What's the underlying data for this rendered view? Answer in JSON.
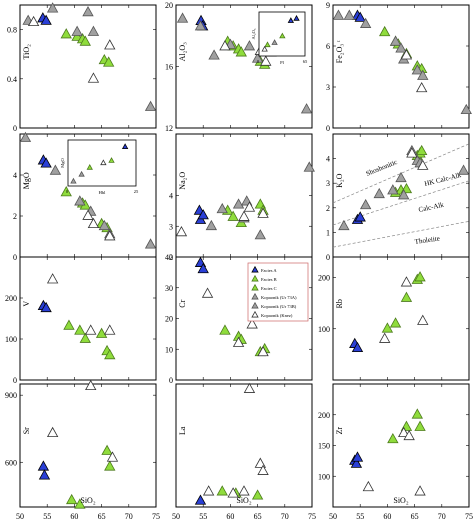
{
  "chart_data": {
    "type": "scatter",
    "x_ticks": [
      50,
      55,
      60,
      65,
      70,
      75
    ],
    "xlim": [
      50,
      75
    ],
    "legend": [
      {
        "name": "Facies A",
        "color": "#2a3fd6",
        "edge": "#000000",
        "shape": "triangle"
      },
      {
        "name": "Facies B",
        "color": "#8fdc3c",
        "edge": "#4c7a1c",
        "shape": "triangle"
      },
      {
        "name": "Facies C",
        "color": "#8fdc3c",
        "edge": "#4c7a1c",
        "shape": "triangle"
      },
      {
        "name": "Kopaonik (Ur 73A)",
        "color": "#a0a0a0",
        "edge": "#555555",
        "shape": "triangle"
      },
      {
        "name": "Kopaonik (Ur 73B)",
        "color": "#a0a0a0",
        "edge": "#555555",
        "shape": "triangle"
      },
      {
        "name": "Kopaonik (Knez)",
        "color": "#ffffff",
        "edge": "#333333",
        "shape": "triangle"
      }
    ],
    "panels": [
      {
        "ylabel": "TiO2",
        "ylim": [
          0,
          1.0
        ],
        "yticks": [
          0,
          0.4,
          0.8
        ],
        "xlabel": "",
        "series": [
          {
            "name": "Facies A",
            "x": [
              54.2,
              54.8
            ],
            "y": [
              0.89,
              0.87
            ]
          },
          {
            "name": "Facies B",
            "x": [
              58.5,
              60.5,
              61.5,
              62.0,
              65.5,
              66.3
            ],
            "y": [
              0.76,
              0.74,
              0.72,
              0.7,
              0.55,
              0.53
            ]
          },
          {
            "name": "Kopaonik (Ur 73A)",
            "x": [
              51.5,
              56.0,
              60.5,
              62.5,
              63.5,
              74.0
            ],
            "y": [
              0.87,
              0.97,
              0.78,
              0.94,
              0.78,
              0.17
            ]
          },
          {
            "name": "Kopaonik (Knez)",
            "x": [
              52.5,
              63.5,
              66.5
            ],
            "y": [
              0.86,
              0.4,
              0.67
            ]
          }
        ]
      },
      {
        "ylabel": "Al2O3",
        "ylim": [
          12,
          20
        ],
        "yticks": [
          12,
          16,
          20
        ],
        "xlabel": "",
        "series": [
          {
            "name": "Facies A",
            "x": [
              54.6,
              54.9
            ],
            "y": [
              18.95,
              18.6
            ]
          },
          {
            "name": "Facies B",
            "x": [
              59.5,
              60.5,
              61.5,
              62.0,
              65.5,
              66.3
            ],
            "y": [
              17.6,
              17.3,
              17.1,
              16.9,
              16.3,
              16.1
            ]
          },
          {
            "name": "Kopaonik (Ur 73A)",
            "x": [
              51.2,
              54.5,
              57.0,
              60.0,
              63.5,
              65.0,
              66.0,
              74.0
            ],
            "y": [
              19.1,
              18.6,
              16.7,
              17.4,
              17.3,
              16.5,
              17.2,
              13.2
            ]
          },
          {
            "name": "Kopaonik (Knez)",
            "x": [
              59.0,
              65.5,
              66.5,
              67.5
            ],
            "y": [
              17.3,
              17.0,
              16.3,
              16.9
            ]
          }
        ],
        "inset": {
          "xlabel": "Pl",
          "ylabel": "Al2O3",
          "x_ticks": [
            0,
            65
          ],
          "points": [
            {
              "x": 45,
              "y": 0.8,
              "kind": "Facies A"
            },
            {
              "x": 53,
              "y": 0.85,
              "kind": "Facies A"
            },
            {
              "x": 33,
              "y": 0.45,
              "kind": "Facies B"
            },
            {
              "x": 12,
              "y": 0.25,
              "kind": "Facies B"
            },
            {
              "x": 22,
              "y": 0.3,
              "kind": "Kopaonik (Ur 73A)"
            },
            {
              "x": 8,
              "y": 0.15,
              "kind": "Kopaonik (Knez)"
            }
          ]
        }
      },
      {
        "ylabel": "Fe2O3 t",
        "ylim": [
          0,
          9
        ],
        "yticks": [
          0,
          3,
          6,
          9
        ],
        "xlabel": "",
        "series": [
          {
            "name": "Facies A",
            "x": [
              54.5,
              55.0
            ],
            "y": [
              8.2,
              8.05
            ]
          },
          {
            "name": "Facies B",
            "x": [
              59.5,
              61.5,
              62.0,
              63.5,
              65.5,
              66.3
            ],
            "y": [
              7.0,
              6.3,
              6.1,
              5.4,
              4.5,
              4.3
            ]
          },
          {
            "name": "Kopaonik (Ur 73A)",
            "x": [
              51.0,
              53.0,
              56.0,
              61.5,
              62.5,
              63.0,
              65.5,
              66.5,
              74.5
            ],
            "y": [
              8.2,
              8.2,
              7.6,
              6.3,
              5.8,
              5.0,
              4.2,
              3.8,
              1.3
            ]
          },
          {
            "name": "Kopaonik (Knez)",
            "x": [
              63.5,
              66.3
            ],
            "y": [
              5.3,
              2.9
            ]
          }
        ]
      },
      {
        "ylabel": "MgO",
        "ylim": [
          0,
          6
        ],
        "yticks": [
          0,
          2,
          4
        ],
        "xlabel": "",
        "series": [
          {
            "name": "Facies A",
            "x": [
              54.3,
              54.8
            ],
            "y": [
              4.7,
              4.55
            ]
          },
          {
            "name": "Facies B",
            "x": [
              58.5,
              61.5,
              62.0,
              65.0,
              66.0
            ],
            "y": [
              3.15,
              2.6,
              2.5,
              1.6,
              1.4
            ]
          },
          {
            "name": "Kopaonik (Ur 73A)",
            "x": [
              51.0,
              56.5,
              61.0,
              63.0,
              65.5,
              66.5,
              74.0
            ],
            "y": [
              5.8,
              4.2,
              2.7,
              2.2,
              1.5,
              1.1,
              0.6
            ]
          },
          {
            "name": "Kopaonik (Knez)",
            "x": [
              62.5,
              63.5,
              66.5
            ],
            "y": [
              2.0,
              1.6,
              1.0
            ]
          }
        ],
        "inset": {
          "xlabel": "Hbl",
          "ylabel": "MgO",
          "x_ticks": [
            0,
            25
          ],
          "points": [
            {
              "x": 21,
              "y": 0.85,
              "kind": "Facies A"
            },
            {
              "x": 16,
              "y": 0.55,
              "kind": "Facies B"
            },
            {
              "x": 8,
              "y": 0.4,
              "kind": "Facies B"
            },
            {
              "x": 5,
              "y": 0.25,
              "kind": "Kopaonik (Ur 73A)"
            },
            {
              "x": 13,
              "y": 0.5,
              "kind": "Kopaonik (Knez)"
            },
            {
              "x": 2,
              "y": 0.1,
              "kind": "Kopaonik (Ur 73A)"
            }
          ]
        }
      },
      {
        "ylabel": "Na2O",
        "ylim": [
          2,
          6
        ],
        "yticks": [
          2,
          3,
          4
        ],
        "xlabel": "",
        "series": [
          {
            "name": "Facies A",
            "x": [
              54.3,
              54.5,
              55.0
            ],
            "y": [
              3.5,
              3.2,
              3.35
            ]
          },
          {
            "name": "Facies B",
            "x": [
              59.5,
              60.5,
              62.0,
              65.5,
              66.0
            ],
            "y": [
              3.5,
              3.3,
              3.1,
              3.7,
              3.5
            ]
          },
          {
            "name": "Kopaonik (Ur 73A)",
            "x": [
              56.5,
              58.5,
              61.5,
              62.5,
              63.0,
              65.5,
              74.5
            ],
            "y": [
              3.0,
              3.55,
              3.7,
              3.25,
              3.8,
              2.7,
              4.9
            ]
          },
          {
            "name": "Kopaonik (Knez)",
            "x": [
              51.0,
              62.5,
              63.5,
              66.0
            ],
            "y": [
              2.8,
              3.3,
              3.6,
              3.4
            ]
          }
        ]
      },
      {
        "ylabel": "K2O",
        "ylim": [
          0,
          5
        ],
        "yticks": [
          0,
          1,
          2,
          3,
          4
        ],
        "xlabel": "",
        "series": [
          {
            "name": "Facies A",
            "x": [
              54.5,
              55.0
            ],
            "y": [
              1.5,
              1.6
            ]
          },
          {
            "name": "Facies B",
            "x": [
              61.5,
              62.5,
              63.5,
              65.5,
              66.0,
              66.3
            ],
            "y": [
              2.6,
              2.7,
              2.75,
              4.1,
              4.2,
              4.3
            ]
          },
          {
            "name": "Kopaonik (Ur 73A)",
            "x": [
              52.0,
              56.0,
              58.5,
              61.0,
              62.5,
              63.0,
              64.5,
              65.5,
              66.0,
              74.0
            ],
            "y": [
              1.25,
              2.1,
              2.55,
              2.7,
              3.2,
              2.5,
              4.3,
              3.9,
              3.8,
              3.5
            ]
          },
          {
            "name": "Kopaonik (Knez)",
            "x": [
              64.5,
              66.5
            ],
            "y": [
              4.2,
              3.7
            ]
          }
        ],
        "fields": [
          "Shoshonitic",
          "HK Calc-Alk",
          "Calc-Alk",
          "Tholeiite"
        ]
      },
      {
        "ylabel": "V",
        "ylim": [
          0,
          300
        ],
        "yticks": [
          0,
          100,
          200
        ],
        "xlabel": "",
        "series": [
          {
            "name": "Facies A",
            "x": [
              54.3,
              54.8
            ],
            "y": [
              180,
              175
            ]
          },
          {
            "name": "Facies B",
            "x": [
              59.0,
              61.0,
              62.0,
              65.0,
              66.0,
              66.5
            ],
            "y": [
              132,
              120,
              100,
              112,
              70,
              60
            ]
          },
          {
            "name": "Kopaonik (Knez)",
            "x": [
              56.0,
              63.0,
              66.5
            ],
            "y": [
              245,
              120,
              120
            ]
          }
        ]
      },
      {
        "ylabel": "Cr",
        "ylim": [
          0,
          40
        ],
        "yticks": [
          0,
          10,
          20,
          30,
          40
        ],
        "xlabel": "",
        "series": [
          {
            "name": "Facies A",
            "x": [
              54.5,
              55.0
            ],
            "y": [
              38,
              36
            ]
          },
          {
            "name": "Facies B",
            "x": [
              59.0,
              61.5,
              62.0,
              65.5,
              66.3
            ],
            "y": [
              16,
              14,
              13,
              9,
              10
            ]
          },
          {
            "name": "Kopaonik (Knez)",
            "x": [
              55.8,
              61.5,
              64.0,
              66.0
            ],
            "y": [
              28,
              12,
              18,
              9
            ]
          }
        ],
        "legend_here": true
      },
      {
        "ylabel": "Rb",
        "ylim": [
          0,
          240
        ],
        "yticks": [
          100,
          200
        ],
        "xlabel": "",
        "series": [
          {
            "name": "Facies A",
            "x": [
              54.0,
              54.5
            ],
            "y": [
              70,
              62
            ]
          },
          {
            "name": "Facies B",
            "x": [
              60.0,
              61.5,
              63.5,
              65.5,
              66.0
            ],
            "y": [
              100,
              110,
              160,
              195,
              200
            ]
          },
          {
            "name": "Kopaonik (Knez)",
            "x": [
              59.5,
              63.5,
              66.5
            ],
            "y": [
              80,
              190,
              115
            ]
          }
        ]
      },
      {
        "ylabel": "Sr",
        "ylim": [
          400,
          950
        ],
        "yticks": [
          600,
          900
        ],
        "xlabel": "SiO2",
        "series": [
          {
            "name": "Facies A",
            "x": [
              54.3,
              54.5
            ],
            "y": [
              580,
              540
            ]
          },
          {
            "name": "Facies B",
            "x": [
              59.5,
              61.0,
              66.0,
              66.5
            ],
            "y": [
              430,
              410,
              650,
              580
            ]
          },
          {
            "name": "Kopaonik (Knez)",
            "x": [
              56.0,
              63.0,
              67.0
            ],
            "y": [
              730,
              940,
              620
            ]
          }
        ]
      },
      {
        "ylabel": "La",
        "ylim": [
          15,
          135
        ],
        "yticks": [],
        "xlabel": "SiO2",
        "series": [
          {
            "name": "Facies A",
            "x": [
              54.5
            ],
            "y": [
              21
            ]
          },
          {
            "name": "Facies B",
            "x": [
              58.5,
              61.0,
              65.0
            ],
            "y": [
              30,
              28,
              26
            ]
          },
          {
            "name": "Kopaonik (Knez)",
            "x": [
              56.0,
              60.5,
              62.5,
              63.5,
              65.5,
              66.0
            ],
            "y": [
              30,
              28,
              30,
              130,
              57,
              50
            ]
          }
        ]
      },
      {
        "ylabel": "Zr",
        "ylim": [
          50,
          250
        ],
        "yticks": [
          100,
          150,
          200
        ],
        "xlabel": "SiO2",
        "series": [
          {
            "name": "Facies A",
            "x": [
              54.0,
              54.3,
              54.5
            ],
            "y": [
              125,
              120,
              130
            ]
          },
          {
            "name": "Facies B",
            "x": [
              61.0,
              63.5,
              65.5,
              66.0
            ],
            "y": [
              160,
              180,
              200,
              180
            ]
          },
          {
            "name": "Kopaonik (Knez)",
            "x": [
              56.5,
              63.0,
              64.0,
              66.0
            ],
            "y": [
              82,
              170,
              165,
              75
            ]
          }
        ]
      }
    ]
  },
  "labels": {
    "panel_ylabels": [
      "TiO₂",
      "Al₂O₃",
      "Fe₂O₃ ᵗ",
      "MgO",
      "Na₂O",
      "K₂O",
      "V",
      "Cr",
      "Rb",
      "Sr",
      "La",
      "Zr"
    ],
    "sio2": "SiO₂",
    "inset1_y": "Al₂O₃",
    "inset1_x": "Pl",
    "inset1_xt": [
      "0",
      "65"
    ],
    "inset2_y": "MgO",
    "inset2_x": "Hbl",
    "inset2_xt": [
      "0",
      "25"
    ],
    "tectonic": {
      "shoshonitic": "Shoshonitic",
      "hk": "HK Calc-Alk",
      "ca": "Calc-Alk",
      "th": "Tholeiite"
    },
    "legend": [
      "Facies A",
      "Facies B",
      "Facies C",
      "Kopaonik (Ur 73A)",
      "Kopaonik (Ur 73B)",
      "Kopaonik (Knez)"
    ]
  }
}
